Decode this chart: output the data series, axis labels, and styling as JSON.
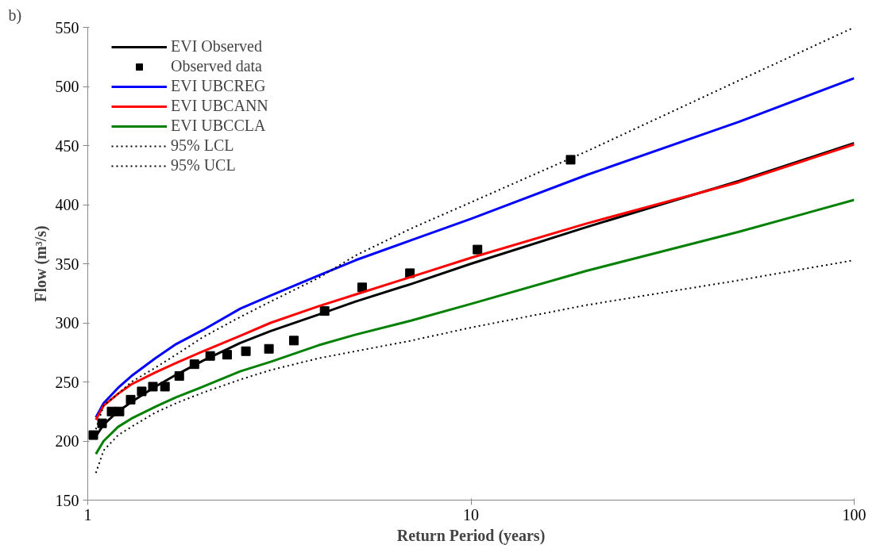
{
  "chart_data": {
    "type": "line",
    "xlabel": "Return Period (years)",
    "ylabel": "Flow (m³/s)",
    "annotations": [
      "b)"
    ],
    "log": "x",
    "xlim": [
      1,
      100
    ],
    "xticks": [
      1,
      10,
      100
    ],
    "ylim": [
      150,
      550
    ],
    "yticks": [
      150,
      200,
      250,
      300,
      350,
      400,
      450,
      500,
      550
    ],
    "grid": false,
    "legend": "top left",
    "marker": "none",
    "x": [
      1.05,
      1.1,
      1.2,
      1.3,
      1.5,
      1.7,
      2,
      2.5,
      3,
      4,
      5,
      7,
      10,
      20,
      50,
      100
    ],
    "series": [
      {
        "name": "EVI Observed",
        "color": "#000000",
        "line_style": "solid",
        "values": [
          204,
          214,
          225,
          233,
          246,
          256,
          268,
          283,
          293,
          307,
          318,
          333,
          350,
          381,
          420,
          452
        ]
      },
      {
        "name": "Observed data",
        "type": "scatter",
        "marker": "square",
        "color": "#000000",
        "x": [
          1.034,
          1.09,
          1.154,
          1.21,
          1.294,
          1.383,
          1.479,
          1.59,
          1.733,
          1.898,
          2.087,
          2.31,
          2.586,
          2.97,
          3.45,
          4.15,
          5.2,
          6.93,
          10.4,
          18.2
        ],
        "values": [
          205,
          215,
          225,
          225,
          235,
          242,
          246,
          246,
          255,
          265,
          272,
          273,
          276,
          278,
          285,
          310,
          330,
          342,
          362,
          438
        ]
      },
      {
        "name": "EVI UBCREG",
        "color": "#0000ff",
        "line_style": "solid",
        "values": [
          220,
          232,
          245,
          255,
          270,
          282,
          294,
          312,
          323,
          340,
          353,
          370,
          388,
          425,
          470,
          507
        ]
      },
      {
        "name": "EVI UBCANN",
        "color": "#ff0000",
        "line_style": "solid",
        "values": [
          218,
          230,
          240,
          248,
          258,
          266,
          276,
          289,
          300,
          314,
          324,
          339,
          355,
          384,
          419,
          451
        ]
      },
      {
        "name": "EVI UBCCLA",
        "color": "#008000",
        "line_style": "solid",
        "values": [
          189,
          200,
          212,
          219,
          229,
          237,
          246,
          259,
          267,
          281,
          290,
          302,
          316,
          344,
          377,
          404
        ]
      },
      {
        "name": "95% LCL",
        "color": "#000000",
        "line_style": "dotted",
        "values": [
          173,
          192,
          205,
          212,
          224,
          232,
          241,
          252,
          260,
          270,
          276,
          285,
          296,
          315,
          336,
          353
        ]
      },
      {
        "name": "95% UCL",
        "color": "#000000",
        "line_style": "dotted",
        "values": [
          210,
          230,
          240,
          250,
          262,
          273,
          288,
          305,
          318,
          338,
          357,
          380,
          402,
          445,
          505,
          550
        ]
      }
    ]
  }
}
